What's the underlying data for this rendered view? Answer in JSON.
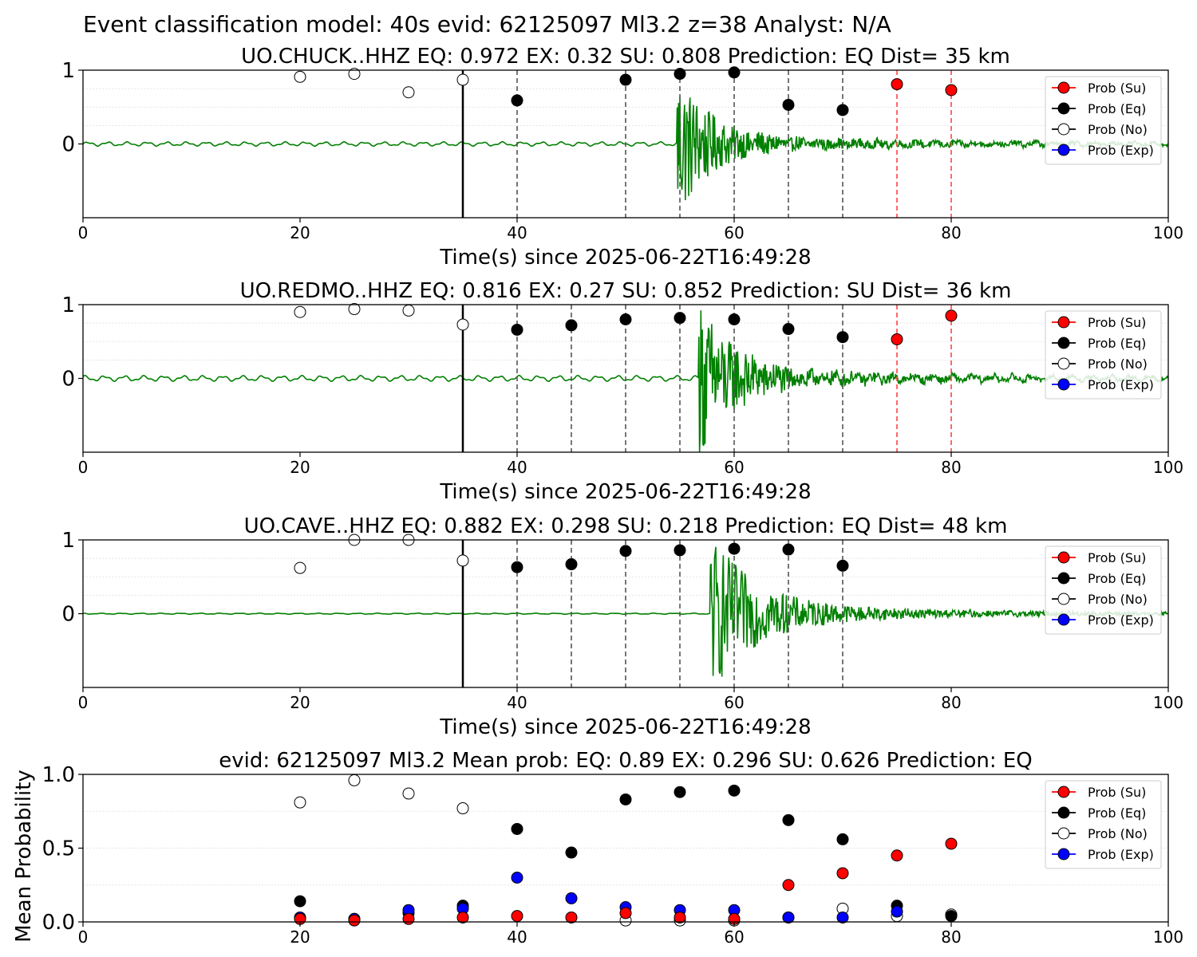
{
  "figure": {
    "suptitle": "Event classification model: 40s evid: 62125097 Ml3.2 z=38 Analyst: N/A"
  },
  "legend": {
    "entries": [
      {
        "label": "Prob (Su)",
        "color": "#ff0000",
        "fill": "#ff0000"
      },
      {
        "label": "Prob (Eq)",
        "color": "#000000",
        "fill": "#000000"
      },
      {
        "label": "Prob (No)",
        "color": "#000000",
        "fill": "#ffffff"
      },
      {
        "label": "Prob (Exp)",
        "color": "#0000ff",
        "fill": "#0000ff"
      }
    ]
  },
  "colors": {
    "waveform": "#008000",
    "pick_line": "#000000",
    "window_eq": "#555555",
    "window_su": "#ff4444",
    "grid": "#dddddd"
  },
  "chart_data": [
    {
      "type": "scatter",
      "title": "UO.CHUCK..HHZ   EQ: 0.972  EX: 0.32  SU: 0.808   Prediction: EQ    Dist= 35 km",
      "xlabel": "Time(s) since 2025-06-22T16:49:28",
      "ylabel": "",
      "xlim": [
        0,
        100
      ],
      "ylim": [
        -1,
        1
      ],
      "xticks": [
        "0",
        "20",
        "40",
        "60",
        "80",
        "100"
      ],
      "yticks": [
        "0",
        "1"
      ],
      "pick_time": 35,
      "waveform": {
        "onset": 54.7,
        "noise_amp": 0.03,
        "peak_amp": 1.0,
        "decay": 0.35
      },
      "series": [
        {
          "name": "Prob (No)",
          "x": [
            20,
            25,
            30,
            35
          ],
          "y": [
            0.91,
            0.95,
            0.7,
            0.87
          ]
        },
        {
          "name": "Prob (Eq)",
          "x": [
            40,
            50,
            55,
            60,
            65,
            70
          ],
          "y": [
            0.59,
            0.87,
            0.95,
            0.97,
            0.53,
            0.46
          ]
        },
        {
          "name": "Prob (Su)",
          "x": [
            75,
            80
          ],
          "y": [
            0.81,
            0.73
          ]
        }
      ]
    },
    {
      "type": "scatter",
      "title": "UO.REDMO..HHZ   EQ: 0.816  EX: 0.27  SU: 0.852   Prediction: SU    Dist= 36 km",
      "xlabel": "Time(s) since 2025-06-22T16:49:28",
      "ylabel": "",
      "xlim": [
        0,
        100
      ],
      "ylim": [
        -1,
        1
      ],
      "xticks": [
        "0",
        "20",
        "40",
        "60",
        "80",
        "100"
      ],
      "yticks": [
        "0",
        "1"
      ],
      "pick_time": 35,
      "waveform": {
        "onset": 56.7,
        "noise_amp": 0.04,
        "peak_amp": 1.0,
        "decay": 0.3
      },
      "series": [
        {
          "name": "Prob (No)",
          "x": [
            20,
            25,
            30,
            35
          ],
          "y": [
            0.9,
            0.94,
            0.92,
            0.73
          ]
        },
        {
          "name": "Prob (Eq)",
          "x": [
            40,
            45,
            50,
            55,
            60,
            65,
            70
          ],
          "y": [
            0.66,
            0.72,
            0.8,
            0.82,
            0.8,
            0.67,
            0.56
          ]
        },
        {
          "name": "Prob (Su)",
          "x": [
            75,
            80
          ],
          "y": [
            0.53,
            0.85
          ]
        }
      ]
    },
    {
      "type": "scatter",
      "title": "UO.CAVE..HHZ   EQ: 0.882  EX: 0.298  SU: 0.218   Prediction: EQ    Dist= 48 km",
      "xlabel": "Time(s) since 2025-06-22T16:49:28",
      "ylabel": "",
      "xlim": [
        0,
        100
      ],
      "ylim": [
        -1,
        1
      ],
      "xticks": [
        "0",
        "20",
        "40",
        "60",
        "80",
        "100"
      ],
      "yticks": [
        "0",
        "1"
      ],
      "pick_time": 35,
      "waveform": {
        "onset": 57.8,
        "noise_amp": 0.008,
        "peak_amp": 1.0,
        "decay": 0.25
      },
      "series": [
        {
          "name": "Prob (No)",
          "x": [
            20,
            25,
            30,
            35
          ],
          "y": [
            0.62,
            1.0,
            1.0,
            0.72
          ]
        },
        {
          "name": "Prob (Eq)",
          "x": [
            40,
            45,
            50,
            55,
            60,
            65,
            70
          ],
          "y": [
            0.63,
            0.67,
            0.85,
            0.86,
            0.88,
            0.87,
            0.65
          ]
        }
      ]
    },
    {
      "type": "scatter",
      "title": "evid: 62125097  Ml3.2   Mean prob:   EQ: 0.89  EX: 0.296  SU: 0.626   Prediction: EQ",
      "xlabel": "",
      "ylabel": "Mean Probability",
      "xlim": [
        0,
        100
      ],
      "ylim": [
        0,
        1
      ],
      "xticks": [
        "0",
        "20",
        "40",
        "60",
        "80",
        "100"
      ],
      "yticks": [
        "0.0",
        "0.5",
        "1.0"
      ],
      "series": [
        {
          "name": "Prob (No)",
          "x": [
            20,
            25,
            30,
            35,
            50,
            55,
            60,
            65,
            70,
            75,
            80
          ],
          "y": [
            0.81,
            0.96,
            0.87,
            0.77,
            0.01,
            0.01,
            0.01,
            0.03,
            0.09,
            0.04,
            0.05
          ]
        },
        {
          "name": "Prob (Eq)",
          "x": [
            20,
            25,
            30,
            35,
            40,
            45,
            50,
            55,
            60,
            65,
            70,
            75,
            80
          ],
          "y": [
            0.14,
            0.02,
            0.06,
            0.11,
            0.63,
            0.47,
            0.83,
            0.88,
            0.89,
            0.69,
            0.56,
            0.11,
            0.04
          ]
        },
        {
          "name": "Prob (Exp)",
          "x": [
            20,
            25,
            30,
            35,
            40,
            45,
            50,
            55,
            60,
            65,
            70,
            75
          ],
          "y": [
            0.03,
            0.02,
            0.08,
            0.09,
            0.3,
            0.16,
            0.1,
            0.08,
            0.08,
            0.03,
            0.03,
            0.07
          ]
        },
        {
          "name": "Prob (Su)",
          "x": [
            20,
            25,
            30,
            35,
            40,
            45,
            50,
            55,
            60,
            65,
            70,
            75,
            80
          ],
          "y": [
            0.02,
            0.01,
            0.02,
            0.03,
            0.04,
            0.03,
            0.06,
            0.03,
            0.02,
            0.25,
            0.33,
            0.45,
            0.53
          ]
        }
      ]
    }
  ]
}
